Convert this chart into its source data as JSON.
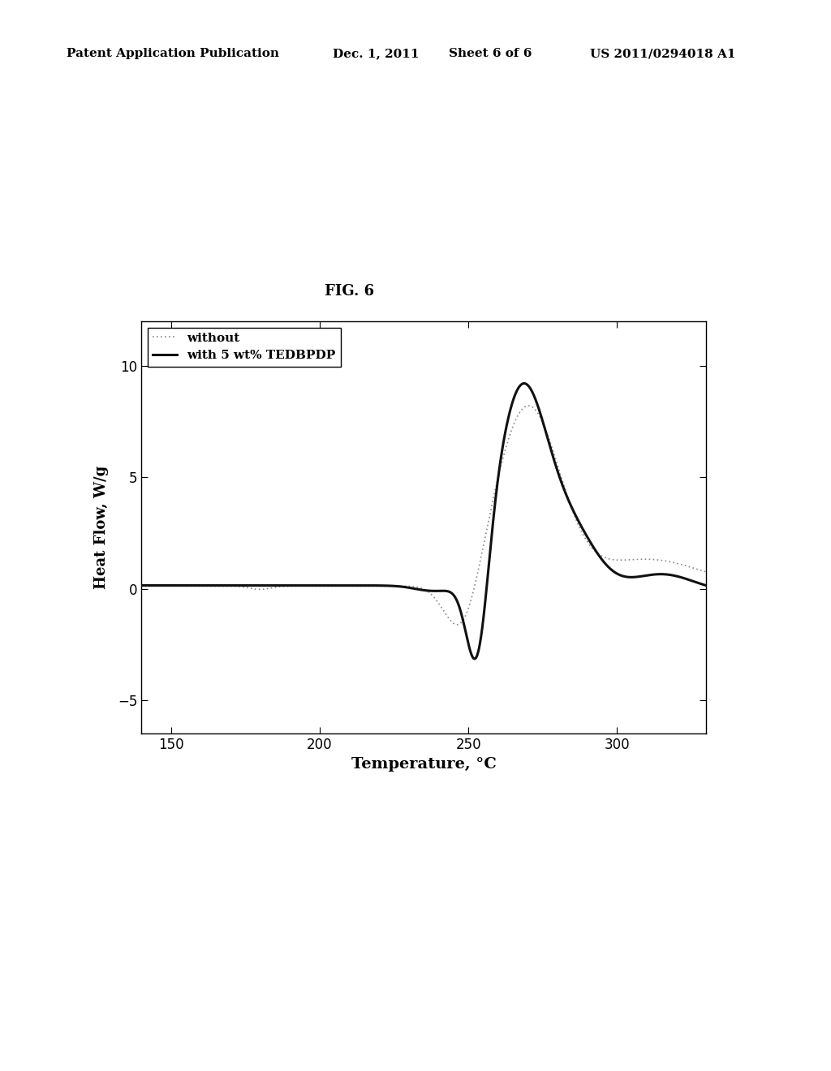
{
  "fig_label": "FIG. 6",
  "patent_header": "Patent Application Publication",
  "patent_date": "Dec. 1, 2011",
  "patent_sheet": "Sheet 6 of 6",
  "patent_number": "US 2011/0294018 A1",
  "xlabel": "Temperature, °C",
  "ylabel": "Heat Flow, W/g",
  "xlim": [
    140,
    330
  ],
  "ylim": [
    -6.5,
    12
  ],
  "xticks": [
    150,
    200,
    250,
    300
  ],
  "yticks": [
    -5,
    0,
    5,
    10
  ],
  "legend_without": "without",
  "legend_with": "with 5 wt% TEDBPDP",
  "bg_color": "#ffffff",
  "line_color_solid": "#000000",
  "line_color_dotted": "#888888"
}
